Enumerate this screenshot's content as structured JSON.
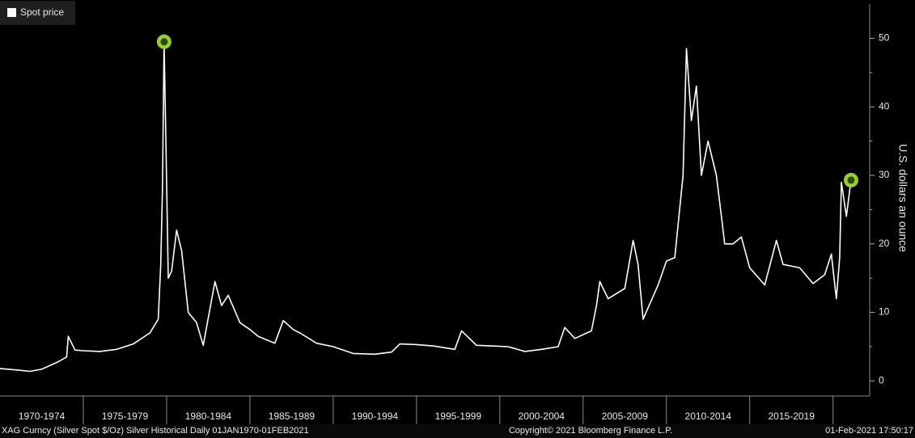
{
  "chart_data": {
    "type": "line",
    "legend": "Spot price",
    "legend_corner": "top-left",
    "y_label": "U.S. dollars an ounce",
    "footer_left": "XAG Curncy (Silver Spot  $/Oz) Silver Historical  Daily 01JAN1970-01FEB2021",
    "footer_center": "Copyright© 2021 Bloomberg Finance L.P.",
    "footer_right": "01-Feb-2021 17:50:17",
    "xlim": [
      1970,
      2022.2
    ],
    "xticks": [
      {
        "value": 1972.5,
        "label": "1970-1974"
      },
      {
        "value": 1977.5,
        "label": "1975-1979"
      },
      {
        "value": 1982.5,
        "label": "1980-1984"
      },
      {
        "value": 1987.5,
        "label": "1985-1989"
      },
      {
        "value": 1992.5,
        "label": "1990-1994"
      },
      {
        "value": 1997.5,
        "label": "1995-1999"
      },
      {
        "value": 2002.5,
        "label": "2000-2004"
      },
      {
        "value": 2007.5,
        "label": "2005-2009"
      },
      {
        "value": 2012.5,
        "label": "2010-2014"
      },
      {
        "value": 2017.5,
        "label": "2015-2019"
      }
    ],
    "ylim": [
      -2.2,
      55
    ],
    "yticks": [
      0,
      10,
      20,
      30,
      40,
      50
    ],
    "minor_yticks": [
      5,
      15,
      25,
      35,
      45
    ],
    "series": [
      {
        "name": "Spot price",
        "color": "#ffffff",
        "x": [
          1970,
          1971,
          1971.8,
          1972.5,
          1973.5,
          1974.0,
          1974.1,
          1974.5,
          1975,
          1976,
          1977,
          1978,
          1979,
          1979.5,
          1979.65,
          1979.75,
          1979.85,
          1979.95,
          1980.1,
          1980.3,
          1980.6,
          1980.9,
          1981.3,
          1981.8,
          1982.2,
          1982.9,
          1983.3,
          1983.7,
          1984.4,
          1985.0,
          1985.5,
          1986.5,
          1987.0,
          1987.6,
          1988,
          1989,
          1990,
          1991.2,
          1992.5,
          1993.5,
          1994,
          1995,
          1996,
          1997.3,
          1997.7,
          1998.6,
          1999.5,
          2000.5,
          2001.5,
          2002.5,
          2003.5,
          2003.9,
          2004.5,
          2005.5,
          2005.8,
          2006.0,
          2006.5,
          2007.5,
          2008.0,
          2008.3,
          2008.6,
          2009.5,
          2010.0,
          2010.5,
          2011.0,
          2011.2,
          2011.5,
          2011.8,
          2012.1,
          2012.5,
          2013.0,
          2013.3,
          2013.5,
          2014.0,
          2014.5,
          2015,
          2015.9,
          2016.6,
          2017,
          2018,
          2018.8,
          2019.5,
          2019.9,
          2020.2,
          2020.4,
          2020.5,
          2020.8,
          2021.08
        ],
        "values": [
          1.8,
          1.6,
          1.4,
          1.7,
          2.8,
          3.5,
          6.5,
          4.5,
          4.4,
          4.3,
          4.6,
          5.4,
          7.0,
          9,
          17,
          28,
          49.5,
          36,
          15,
          16,
          22,
          19,
          10,
          8.5,
          5.2,
          14.5,
          11,
          12.5,
          8.5,
          7.5,
          6.5,
          5.5,
          8.8,
          7.5,
          7.0,
          5.5,
          5.0,
          4.0,
          3.9,
          4.2,
          5.4,
          5.3,
          5.1,
          4.6,
          7.3,
          5.2,
          5.1,
          5.0,
          4.3,
          4.6,
          5.0,
          7.8,
          6.2,
          7.3,
          11,
          14.5,
          12,
          13.5,
          20.5,
          17,
          9,
          14,
          17.5,
          18,
          30,
          48.5,
          38,
          43,
          30,
          35,
          30,
          24,
          20,
          20,
          21,
          16.5,
          14,
          20.5,
          17,
          16.5,
          14.2,
          15.5,
          18.5,
          12,
          18,
          29,
          24,
          29.3
        ]
      }
    ],
    "markers": {
      "color": "#9acd32",
      "x": [
        1979.85,
        2021.08
      ],
      "values": [
        49.5,
        29.3
      ]
    }
  }
}
